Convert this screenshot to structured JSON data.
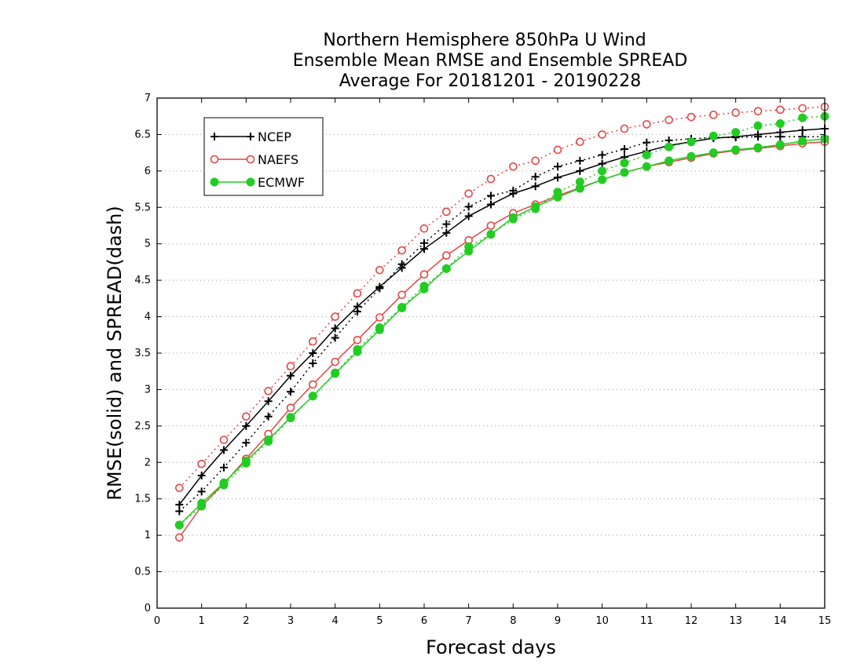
{
  "chart_data": {
    "type": "line",
    "title": [
      "Northern Hemisphere 850hPa U Wind",
      "Ensemble Mean RMSE and Ensemble SPREAD",
      "Average For 20181201 - 20190228"
    ],
    "xlabel": "Forecast days",
    "ylabel": "RMSE(solid) and SPREAD(dash)",
    "xlim": [
      0,
      15
    ],
    "ylim": [
      0,
      7
    ],
    "xticks": [
      "0",
      "1",
      "2",
      "3",
      "4",
      "5",
      "6",
      "7",
      "8",
      "9",
      "10",
      "11",
      "12",
      "13",
      "14",
      "15"
    ],
    "yticks": [
      "0",
      "0.5",
      "1",
      "1.5",
      "2",
      "2.5",
      "3",
      "3.5",
      "4",
      "4.5",
      "5",
      "5.5",
      "6",
      "6.5",
      "7"
    ],
    "grid": "horizontal-dotted",
    "legend": "top-left",
    "x": [
      0.5,
      1,
      1.5,
      2,
      2.5,
      3,
      3.5,
      4,
      4.5,
      5,
      5.5,
      6,
      6.5,
      7,
      7.5,
      8,
      8.5,
      9,
      9.5,
      10,
      10.5,
      11,
      11.5,
      12,
      12.5,
      13,
      13.5,
      14,
      14.5,
      15
    ],
    "series": [
      {
        "name": "NCEP",
        "color": "#000000",
        "marker": "plus",
        "rmse": [
          1.42,
          1.82,
          2.17,
          2.5,
          2.84,
          3.19,
          3.5,
          3.84,
          4.14,
          4.41,
          4.67,
          4.93,
          5.15,
          5.38,
          5.54,
          5.69,
          5.79,
          5.91,
          6.0,
          6.1,
          6.19,
          6.27,
          6.35,
          6.4,
          6.45,
          6.47,
          6.5,
          6.53,
          6.56,
          6.58
        ],
        "spread": [
          1.33,
          1.6,
          1.93,
          2.27,
          2.63,
          2.97,
          3.36,
          3.71,
          4.07,
          4.39,
          4.72,
          5.01,
          5.27,
          5.51,
          5.66,
          5.73,
          5.92,
          6.06,
          6.14,
          6.22,
          6.3,
          6.39,
          6.42,
          6.44,
          6.46,
          6.46,
          6.47,
          6.47,
          6.47,
          6.47
        ]
      },
      {
        "name": "NAEFS",
        "color": "#e84444",
        "marker": "circle-open",
        "rmse": [
          0.97,
          1.4,
          1.71,
          2.05,
          2.39,
          2.75,
          3.07,
          3.38,
          3.68,
          3.99,
          4.3,
          4.58,
          4.84,
          5.05,
          5.25,
          5.42,
          5.54,
          5.66,
          5.77,
          5.88,
          5.98,
          6.06,
          6.12,
          6.18,
          6.24,
          6.28,
          6.31,
          6.34,
          6.38,
          6.4
        ],
        "spread": [
          1.65,
          1.98,
          2.31,
          2.63,
          2.98,
          3.32,
          3.66,
          4.0,
          4.32,
          4.64,
          4.91,
          5.21,
          5.44,
          5.69,
          5.89,
          6.06,
          6.14,
          6.29,
          6.4,
          6.5,
          6.58,
          6.64,
          6.7,
          6.74,
          6.77,
          6.8,
          6.82,
          6.84,
          6.86,
          6.88
        ]
      },
      {
        "name": "ECMWF",
        "color": "#22cc22",
        "marker": "circle-filled",
        "rmse": [
          1.14,
          1.44,
          1.72,
          2.02,
          2.31,
          2.62,
          2.91,
          3.22,
          3.52,
          3.82,
          4.12,
          4.38,
          4.66,
          4.9,
          5.13,
          5.36,
          5.51,
          5.64,
          5.76,
          5.88,
          5.98,
          6.06,
          6.14,
          6.2,
          6.25,
          6.29,
          6.32,
          6.36,
          6.41,
          6.44
        ],
        "spread": [
          1.14,
          1.4,
          1.69,
          1.99,
          2.29,
          2.61,
          2.91,
          3.23,
          3.55,
          3.85,
          4.13,
          4.42,
          4.66,
          4.96,
          5.13,
          5.34,
          5.48,
          5.71,
          5.85,
          6.0,
          6.11,
          6.22,
          6.33,
          6.4,
          6.48,
          6.53,
          6.62,
          6.65,
          6.73,
          6.75
        ]
      }
    ]
  }
}
